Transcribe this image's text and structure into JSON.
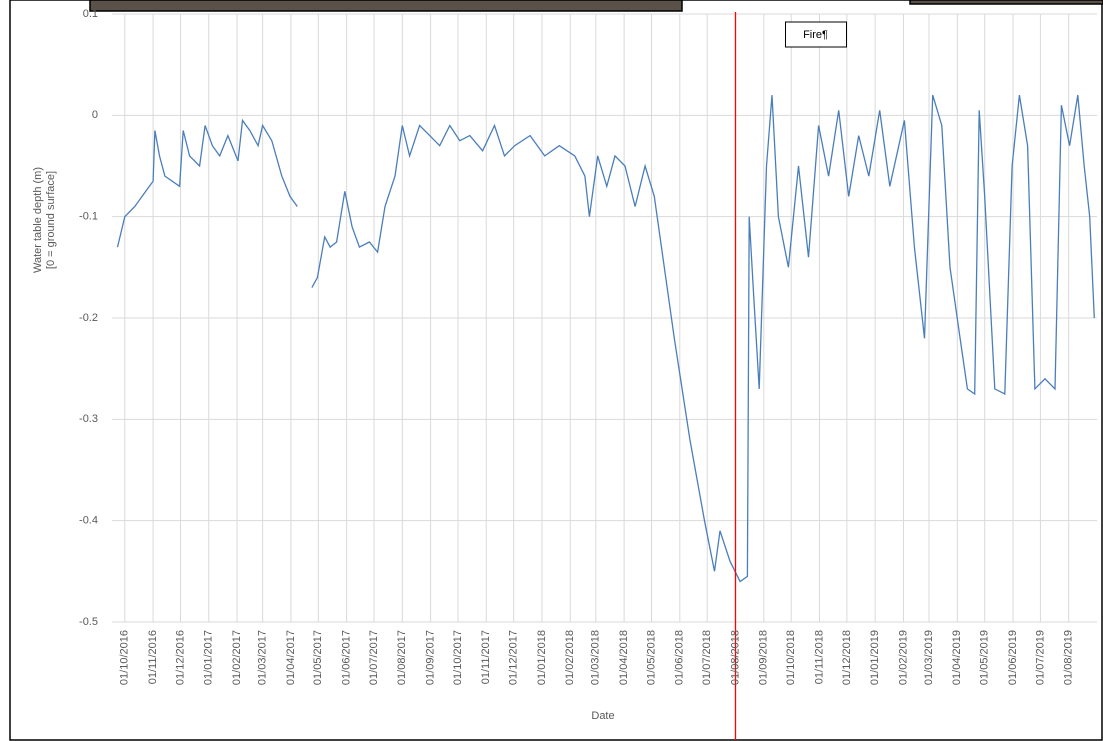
{
  "chart_data": {
    "type": "line",
    "xlabel": "Date",
    "ylabel": [
      "Water table depth (m)",
      "[0 = ground surface]"
    ],
    "x": [
      "23/09/2016",
      "01/10/2016",
      "12/10/2016",
      "28/10/2016",
      "01/11/2016",
      "03/11/2016",
      "08/11/2016",
      "14/11/2016",
      "30/11/2016",
      "04/12/2016",
      "11/12/2016",
      "22/12/2016",
      "28/12/2016",
      "05/01/2017",
      "13/01/2017",
      "22/01/2017",
      "02/02/2017",
      "07/02/2017",
      "15/02/2017",
      "24/02/2017",
      "01/03/2017",
      "11/03/2017",
      "22/03/2017",
      "31/03/2017",
      "08/04/2017",
      "16/04/2017",
      "24/04/2017",
      "30/04/2017",
      "08/05/2017",
      "14/05/2017",
      "21/05/2017",
      "30/05/2017",
      "07/06/2017",
      "15/06/2017",
      "26/06/2017",
      "05/07/2017",
      "13/07/2017",
      "24/07/2017",
      "01/08/2017",
      "09/08/2017",
      "20/08/2017",
      "31/08/2017",
      "11/09/2017",
      "22/09/2017",
      "03/10/2017",
      "14/10/2017",
      "28/10/2017",
      "10/11/2017",
      "21/11/2017",
      "02/12/2017",
      "19/12/2017",
      "04/01/2018",
      "20/01/2018",
      "06/02/2018",
      "17/02/2018",
      "22/02/2018",
      "03/03/2018",
      "13/03/2018",
      "22/03/2018",
      "02/04/2018",
      "13/04/2018",
      "24/04/2018",
      "04/05/2018",
      "15/05/2018",
      "26/05/2018",
      "12/06/2018",
      "28/06/2018",
      "09/07/2018",
      "15/07/2018",
      "26/07/2018",
      "06/08/2018",
      "14/08/2018",
      "16/08/2018",
      "21/08/2018",
      "27/08/2018",
      "04/09/2018",
      "10/09/2018",
      "17/09/2018",
      "28/09/2018",
      "09/10/2018",
      "20/10/2018",
      "31/10/2018",
      "11/11/2018",
      "22/11/2018",
      "03/12/2018",
      "14/12/2018",
      "25/12/2018",
      "06/01/2019",
      "17/01/2019",
      "02/02/2019",
      "13/02/2019",
      "24/02/2019",
      "05/03/2019",
      "15/03/2019",
      "24/03/2019",
      "04/04/2019",
      "12/04/2019",
      "20/04/2019",
      "25/04/2019",
      "01/05/2019",
      "12/05/2019",
      "23/05/2019",
      "31/05/2019",
      "08/06/2019",
      "17/06/2019",
      "25/06/2019",
      "06/07/2019",
      "17/07/2019",
      "24/07/2019",
      "02/08/2019",
      "11/08/2019",
      "18/08/2019",
      "24/08/2019",
      "29/08/2019"
    ],
    "series": [
      {
        "color": "#4a7ebb",
        "values": [
          -0.13,
          -0.1,
          -0.09,
          -0.07,
          -0.065,
          -0.015,
          -0.04,
          -0.06,
          -0.07,
          -0.015,
          -0.04,
          -0.05,
          -0.01,
          -0.03,
          -0.04,
          -0.02,
          -0.045,
          -0.005,
          -0.015,
          -0.03,
          -0.01,
          -0.025,
          -0.06,
          -0.08,
          -0.09,
          null,
          -0.17,
          -0.16,
          -0.12,
          -0.13,
          -0.125,
          -0.075,
          -0.11,
          -0.13,
          -0.125,
          -0.135,
          -0.09,
          -0.06,
          -0.01,
          -0.04,
          -0.01,
          -0.02,
          -0.03,
          -0.01,
          -0.025,
          -0.02,
          -0.035,
          -0.01,
          -0.04,
          -0.03,
          -0.02,
          -0.04,
          -0.03,
          -0.04,
          -0.06,
          -0.1,
          -0.04,
          -0.07,
          -0.04,
          -0.05,
          -0.09,
          -0.05,
          -0.08,
          -0.15,
          -0.22,
          -0.32,
          -0.4,
          -0.45,
          -0.41,
          -0.44,
          -0.46,
          -0.455,
          -0.1,
          -0.18,
          -0.27,
          -0.05,
          0.02,
          -0.1,
          -0.15,
          -0.05,
          -0.14,
          -0.01,
          -0.06,
          0.005,
          -0.08,
          -0.02,
          -0.06,
          0.005,
          -0.07,
          -0.005,
          -0.13,
          -0.22,
          0.02,
          -0.01,
          -0.15,
          -0.22,
          -0.27,
          -0.275,
          0.005,
          -0.08,
          -0.27,
          -0.275,
          -0.05,
          0.02,
          -0.03,
          -0.27,
          -0.26,
          -0.27,
          0.01,
          -0.03,
          0.02,
          -0.05,
          -0.1,
          -0.2
        ]
      }
    ],
    "xlim": [
      "17/09/2016",
      "01/09/2019"
    ],
    "xticks": [
      "01/10/2016",
      "01/11/2016",
      "01/12/2016",
      "01/01/2017",
      "01/02/2017",
      "01/03/2017",
      "01/04/2017",
      "01/05/2017",
      "01/06/2017",
      "01/07/2017",
      "01/08/2017",
      "01/09/2017",
      "01/10/2017",
      "01/11/2017",
      "01/12/2017",
      "01/01/2018",
      "01/02/2018",
      "01/03/2018",
      "01/04/2018",
      "01/05/2018",
      "01/06/2018",
      "01/07/2018",
      "01/08/2018",
      "01/09/2018",
      "01/10/2018",
      "01/11/2018",
      "01/12/2018",
      "01/01/2019",
      "01/02/2019",
      "01/03/2019",
      "01/04/2019",
      "01/05/2019",
      "01/06/2019",
      "01/07/2019",
      "01/08/2019"
    ],
    "ylim": [
      -0.5,
      0.1
    ],
    "yticks": [
      0.1,
      0,
      -0.1,
      -0.2,
      -0.3,
      -0.4,
      -0.5
    ],
    "grid": true,
    "annotation": {
      "x": "01/08/2018",
      "text": "Fire¶",
      "color": "#ff0000"
    }
  }
}
